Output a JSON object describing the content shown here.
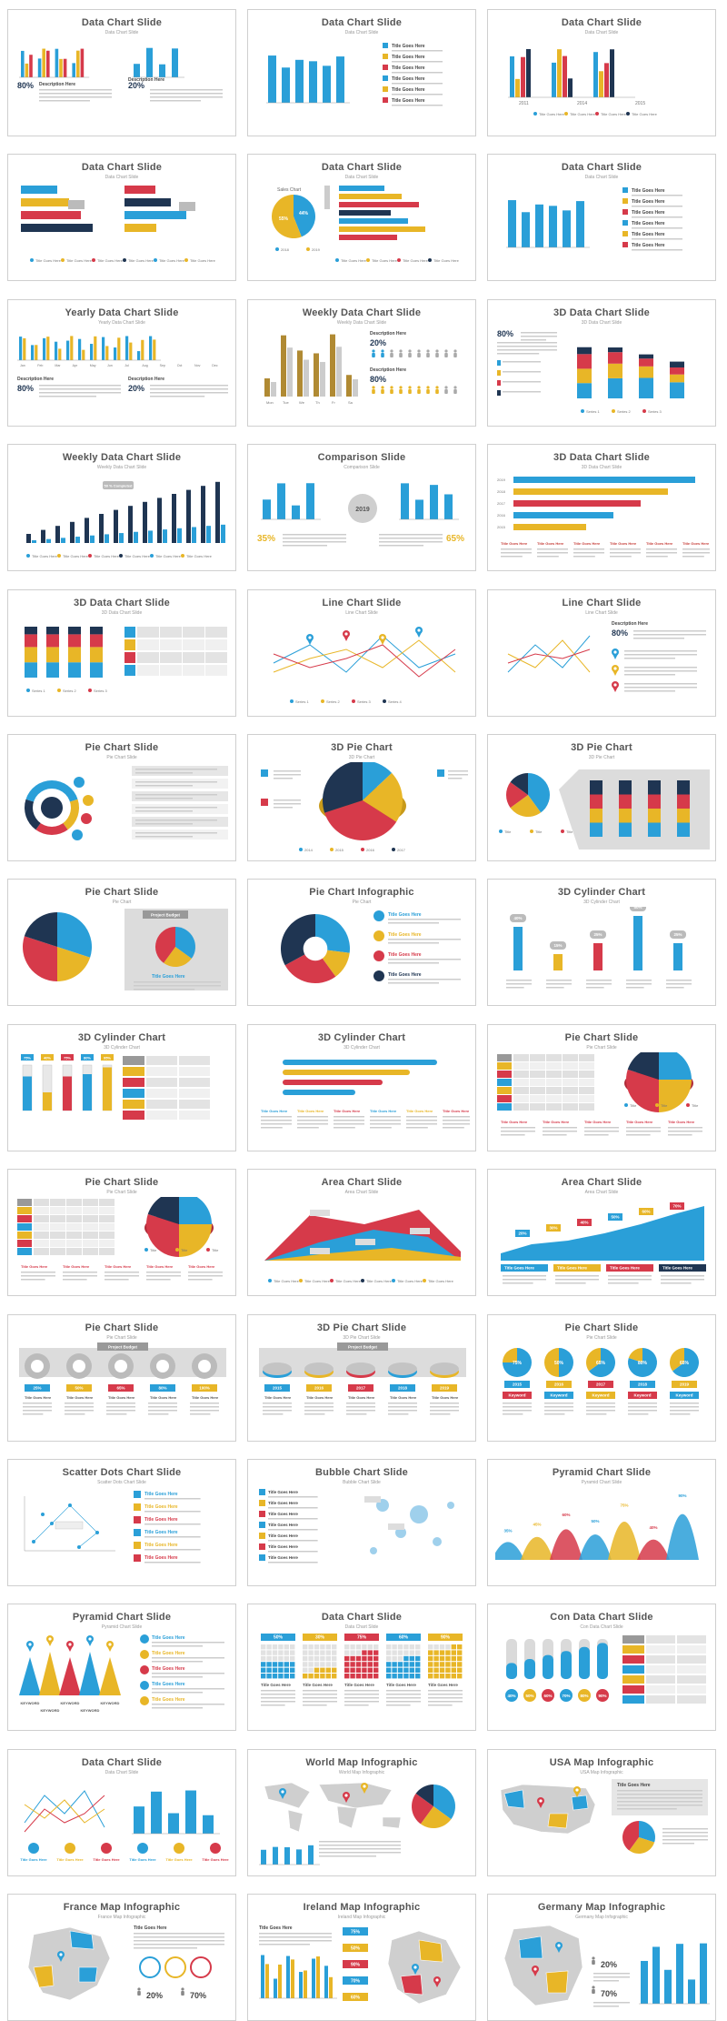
{
  "colors": {
    "blue": "#2a9fd8",
    "yellow": "#e8b627",
    "red": "#d63a4a",
    "navy": "#1f3552",
    "gray": "#bfbfbf",
    "light": "#eeeeee",
    "text": "#555555"
  },
  "slides": [
    {
      "title": "Data Chart Slide",
      "subtitle": "Data Chart Slide",
      "kind": "bars-desc",
      "pct": "80%",
      "pct2": "20%",
      "desc": "Description Here"
    },
    {
      "title": "Data Chart Slide",
      "subtitle": "Data Chart Slide",
      "kind": "bars-list",
      "item": "Title Goes Here"
    },
    {
      "title": "Data Chart Slide",
      "subtitle": "Data Chart Slide",
      "kind": "bars-group",
      "years": [
        "2011",
        "2014",
        "2015"
      ]
    },
    {
      "title": "Data Chart Slide",
      "subtitle": "Data Chart Slide",
      "kind": "hbars",
      "item": "Title Goes Here"
    },
    {
      "title": "Data Chart Slide",
      "subtitle": "Data Chart Slide",
      "kind": "pie-hbars",
      "label": "Sales Chart",
      "pct1": "55%",
      "pct2": "44%"
    },
    {
      "title": "Data Chart Slide",
      "subtitle": "Data Chart Slide",
      "kind": "bars-list",
      "item": "Title Goes Here"
    },
    {
      "title": "Yearly Data Chart Slide",
      "subtitle": "Yearly Data Chart Slide",
      "kind": "yearly",
      "months": [
        "Jan",
        "Feb",
        "Mar",
        "Apr",
        "May",
        "Jun",
        "Jul",
        "Aug",
        "Sep",
        "Oct",
        "Nov",
        "Dec"
      ],
      "pct": "80%",
      "pct2": "20%",
      "desc": "Description Here"
    },
    {
      "title": "Weekly Data Chart Slide",
      "subtitle": "Weekly Data Chart Slide",
      "kind": "weekly-people",
      "days": [
        "Mon",
        "Tue",
        "We",
        "Th",
        "Fr",
        "Sa"
      ],
      "pct": "20%",
      "pct2": "80%",
      "desc": "Description Here"
    },
    {
      "title": "3D Data Chart Slide",
      "subtitle": "3D Data Chart Slide",
      "kind": "stack3d",
      "pct": "80%"
    },
    {
      "title": "Weekly Data Chart Slide",
      "subtitle": "Weekly Data Chart Slide",
      "kind": "weekly-bars",
      "callout": "50 % Completed"
    },
    {
      "title": "Comparison Slide",
      "subtitle": "Comparison Slide",
      "kind": "comparison",
      "year": "2019",
      "pct": "35%",
      "pct2": "65%"
    },
    {
      "title": "3D Data Chart Slide",
      "subtitle": "3D Data Chart Slide",
      "kind": "hbars3d",
      "years": [
        "2019",
        "2018",
        "2017",
        "2016",
        "2015"
      ]
    },
    {
      "title": "3D Data Chart Slide",
      "subtitle": "3D Data Chart Slide",
      "kind": "stack3d-table"
    },
    {
      "title": "Line Chart Slide",
      "subtitle": "Line Chart Slide",
      "kind": "line-pins"
    },
    {
      "title": "Line Chart Slide",
      "subtitle": "Line Chart Slide",
      "kind": "line-desc",
      "pct": "80%",
      "desc": "Description Here"
    },
    {
      "title": "Pie Chart Slide",
      "subtitle": "Pie Chart Slide",
      "kind": "social-ring"
    },
    {
      "title": "3D Pie Chart",
      "subtitle": "3D Pie Chart",
      "kind": "pie3d",
      "years": [
        "2014",
        "2015",
        "2016",
        "2017"
      ]
    },
    {
      "title": "3D Pie Chart",
      "subtitle": "3D Pie Chart",
      "kind": "pie3d-stack"
    },
    {
      "title": "Pie Chart Slide",
      "subtitle": "Pie Chart",
      "kind": "pie-budget",
      "callout": "Project Budget"
    },
    {
      "title": "Pie Chart Infographic",
      "subtitle": "Pie Chart",
      "kind": "pie-info"
    },
    {
      "title": "3D Cylinder Chart",
      "subtitle": "3D Cylinder Chart",
      "kind": "cylinder",
      "pcts": [
        "40%",
        "15%",
        "25%",
        "50%",
        "25%"
      ]
    },
    {
      "title": "3D Cylinder Chart",
      "subtitle": "3D Cylinder Chart",
      "kind": "cylinder-table",
      "pcts": [
        "75%",
        "40%",
        "75%",
        "80%",
        "95%"
      ]
    },
    {
      "title": "3D Cylinder Chart",
      "subtitle": "3D Cylinder Chart",
      "kind": "hcylinder"
    },
    {
      "title": "Pie Chart Slide",
      "subtitle": "Pie Chart Slide",
      "kind": "pie-table"
    },
    {
      "title": "Pie Chart Slide",
      "subtitle": "Pie Chart Slide",
      "kind": "pie-table"
    },
    {
      "title": "Area Chart Slide",
      "subtitle": "Area Chart Slide",
      "kind": "area"
    },
    {
      "title": "Area Chart Slide",
      "subtitle": "Area Chart Slide",
      "kind": "area-pins",
      "pcts": [
        "20%",
        "30%",
        "40%",
        "50%",
        "60%",
        "70%"
      ]
    },
    {
      "title": "Pie Chart Slide",
      "subtitle": "Pie Chart Slide",
      "kind": "donuts",
      "callout": "Project Budget",
      "pcts": [
        "25%",
        "50%",
        "65%",
        "80%",
        "100%"
      ]
    },
    {
      "title": "3D Pie Chart Slide",
      "subtitle": "3D Pie Chart Slide",
      "kind": "pies3d-row",
      "callout": "Project Budget",
      "years": [
        "2015",
        "2016",
        "2017",
        "2018",
        "2019"
      ]
    },
    {
      "title": "Pie Chart Slide",
      "subtitle": "Pie Chart Slide",
      "kind": "pies-keyword",
      "years": [
        "2015",
        "2016",
        "2017",
        "2018",
        "2019"
      ],
      "keyword": "Keyword",
      "pcts": [
        "75%",
        "50%",
        "65%",
        "80%",
        "65%"
      ]
    },
    {
      "title": "Scatter Dots Chart Slide",
      "subtitle": "Scatter Dots Chart Slide",
      "kind": "scatter",
      "item": "Title Goes Here"
    },
    {
      "title": "Bubble Chart Slide",
      "subtitle": "Bubble Chart Slide",
      "kind": "bubble",
      "item": "Title Goes Here"
    },
    {
      "title": "Pyramid Chart Slide",
      "subtitle": "Pyramid Chart Slide",
      "kind": "pyramid",
      "pcts": [
        "35%",
        "45%",
        "60%",
        "50%",
        "75%",
        "40%",
        "90%"
      ]
    },
    {
      "title": "Pyramid Chart Slide",
      "subtitle": "Pyramid Chart Slide",
      "kind": "pyramid-pins",
      "keyword": "KEYWORD"
    },
    {
      "title": "Data Chart Slide",
      "subtitle": "Data Chart Slide",
      "kind": "waffle",
      "pcts": [
        "50%",
        "30%",
        "75%",
        "60%",
        "90%"
      ]
    },
    {
      "title": "Con Data Chart Slide",
      "subtitle": "Con Data Chart Slide",
      "kind": "con-data",
      "pcts": [
        "40%",
        "50%",
        "60%",
        "70%",
        "80%",
        "90%"
      ]
    },
    {
      "title": "Data Chart Slide",
      "subtitle": "Data Chart Slide",
      "kind": "line-bars-icons",
      "item": "Title Goes Here"
    },
    {
      "title": "World Map Infographic",
      "subtitle": "World Map Infographic",
      "kind": "world-map"
    },
    {
      "title": "USA Map Infographic",
      "subtitle": "USA Map Infographic",
      "kind": "usa-map",
      "item": "Title Goes Here"
    },
    {
      "title": "France Map Infographic",
      "subtitle": "France Map Infographic",
      "kind": "france-map",
      "pct": "20%",
      "pct2": "70%"
    },
    {
      "title": "Ireland Map Infographic",
      "subtitle": "Ireland Map Infographic",
      "kind": "ireland-map",
      "pcts": [
        "75%",
        "50%",
        "90%",
        "70%",
        "60%"
      ]
    },
    {
      "title": "Germany Map Infographic",
      "subtitle": "Germany Map Infographic",
      "kind": "germany-map",
      "pct": "20%",
      "pct2": "70%"
    }
  ]
}
